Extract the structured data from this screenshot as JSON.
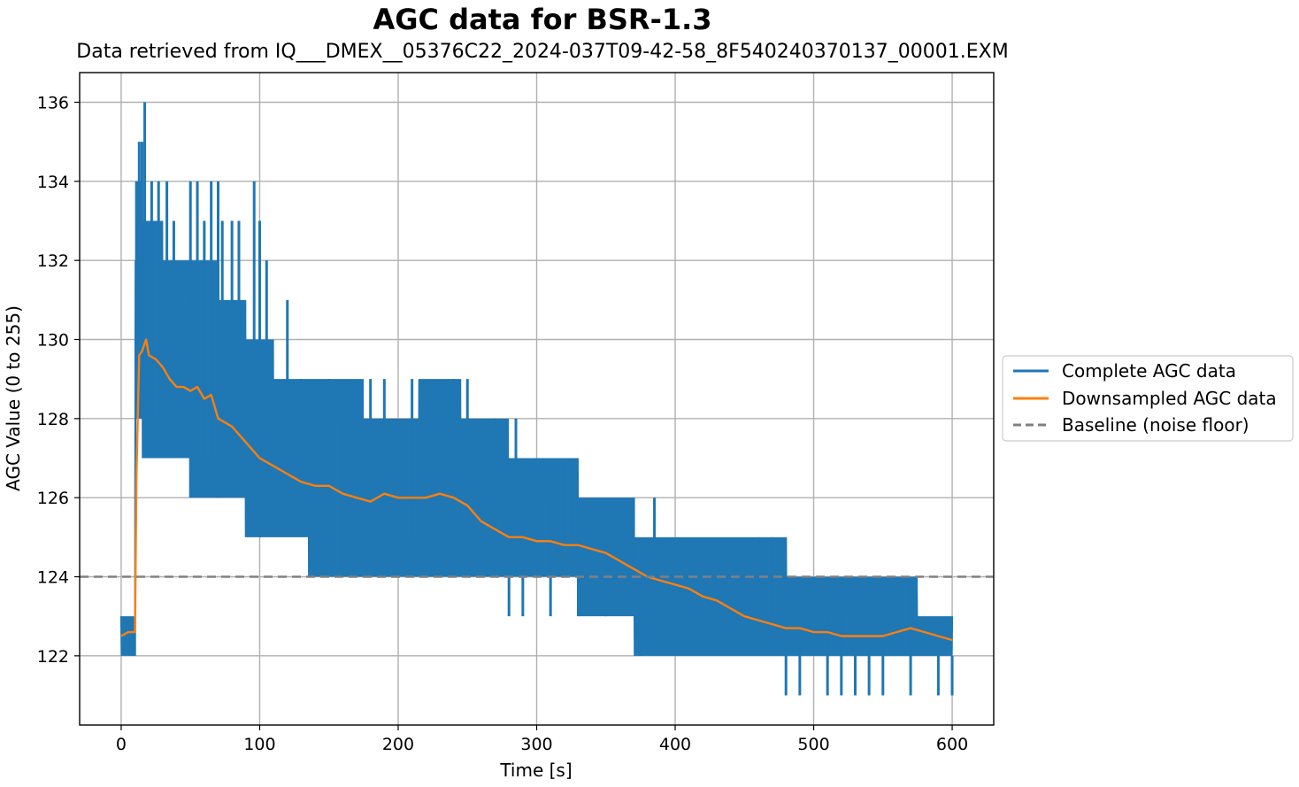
{
  "chart_data": {
    "type": "line",
    "title": "AGC data for BSR-1.3",
    "subtitle": "Data retrieved from IQ___DMEX__05376C22_2024-037T09-42-58_8F540240370137_00001.EXM",
    "xlabel": "Time [s]",
    "ylabel": "AGC Value (0 to 255)",
    "xlim": [
      -30,
      630
    ],
    "ylim": [
      120.25,
      136.75
    ],
    "xticks": [
      0,
      100,
      200,
      300,
      400,
      500,
      600
    ],
    "yticks": [
      122,
      124,
      126,
      128,
      130,
      132,
      134,
      136
    ],
    "grid": true,
    "legend_position": "center-right outside",
    "baseline": {
      "name": "Baseline (noise floor)",
      "value": 124,
      "color": "#808080",
      "style": "dashed"
    },
    "series": [
      {
        "name": "Complete AGC data",
        "color": "#1f77b4",
        "kind": "band",
        "x": [
          0,
          10,
          10.5,
          20,
          40,
          60,
          80,
          100,
          120,
          150,
          200,
          230,
          260,
          300,
          360,
          380,
          440,
          460,
          500,
          550,
          600
        ],
        "low": [
          122,
          122,
          128,
          127,
          127,
          126,
          126,
          125,
          125,
          124,
          124,
          124,
          124,
          124,
          123,
          122,
          122,
          122,
          122,
          122,
          122
        ],
        "high": [
          123,
          123,
          134,
          133,
          132,
          132,
          131,
          130,
          129,
          129,
          128,
          129,
          128,
          127,
          126,
          125,
          125,
          125,
          124,
          124,
          123
        ],
        "spikes_high": [
          [
            11,
            134
          ],
          [
            13,
            135
          ],
          [
            15,
            135
          ],
          [
            17,
            136
          ],
          [
            22,
            134
          ],
          [
            27,
            134
          ],
          [
            33,
            134
          ],
          [
            38,
            133
          ],
          [
            50,
            134
          ],
          [
            55,
            134
          ],
          [
            60,
            133
          ],
          [
            65,
            134
          ],
          [
            70,
            134
          ],
          [
            73,
            133
          ],
          [
            80,
            133
          ],
          [
            85,
            133
          ],
          [
            96,
            134
          ],
          [
            100,
            133
          ],
          [
            105,
            132
          ],
          [
            120,
            131
          ],
          [
            130,
            129
          ],
          [
            150,
            129
          ],
          [
            180,
            129
          ],
          [
            190,
            129
          ],
          [
            210,
            129
          ],
          [
            240,
            129
          ],
          [
            250,
            129
          ],
          [
            270,
            128
          ],
          [
            285,
            128
          ],
          [
            320,
            127
          ],
          [
            325,
            127
          ],
          [
            370,
            126
          ],
          [
            385,
            126
          ],
          [
            460,
            125
          ],
          [
            470,
            125
          ],
          [
            530,
            124
          ],
          [
            570,
            124
          ]
        ],
        "spikes_low": [
          [
            8,
            122
          ],
          [
            30,
            127
          ],
          [
            50,
            126
          ],
          [
            70,
            126
          ],
          [
            100,
            125
          ],
          [
            140,
            124
          ],
          [
            160,
            124
          ],
          [
            225,
            124
          ],
          [
            280,
            123
          ],
          [
            290,
            123
          ],
          [
            310,
            123
          ],
          [
            330,
            123
          ],
          [
            350,
            123
          ],
          [
            375,
            122
          ],
          [
            480,
            121
          ],
          [
            490,
            121
          ],
          [
            510,
            121
          ],
          [
            520,
            121
          ],
          [
            530,
            121
          ],
          [
            540,
            121
          ],
          [
            550,
            121
          ],
          [
            570,
            121
          ],
          [
            590,
            121
          ],
          [
            600,
            121
          ]
        ]
      },
      {
        "name": "Downsampled AGC data",
        "color": "#ff7f0e",
        "kind": "line",
        "x": [
          0,
          5,
          10,
          11,
          13,
          15,
          18,
          20,
          25,
          30,
          35,
          40,
          45,
          50,
          55,
          60,
          65,
          70,
          75,
          80,
          85,
          90,
          95,
          100,
          110,
          120,
          130,
          140,
          150,
          160,
          170,
          180,
          190,
          200,
          210,
          220,
          230,
          240,
          250,
          255,
          260,
          270,
          280,
          290,
          300,
          310,
          320,
          330,
          340,
          350,
          360,
          370,
          380,
          390,
          400,
          410,
          420,
          430,
          440,
          450,
          460,
          470,
          480,
          490,
          500,
          510,
          520,
          530,
          540,
          550,
          560,
          570,
          580,
          590,
          600
        ],
        "y": [
          122.5,
          122.6,
          122.6,
          126.5,
          129.6,
          129.7,
          130.0,
          129.6,
          129.5,
          129.3,
          129.0,
          128.8,
          128.8,
          128.7,
          128.8,
          128.5,
          128.6,
          128.0,
          127.9,
          127.8,
          127.6,
          127.4,
          127.2,
          127.0,
          126.8,
          126.6,
          126.4,
          126.3,
          126.3,
          126.1,
          126.0,
          125.9,
          126.1,
          126.0,
          126.0,
          126.0,
          126.1,
          126.0,
          125.8,
          125.6,
          125.4,
          125.2,
          125.0,
          125.0,
          124.9,
          124.9,
          124.8,
          124.8,
          124.7,
          124.6,
          124.4,
          124.2,
          124.0,
          123.9,
          123.8,
          123.7,
          123.5,
          123.4,
          123.2,
          123.0,
          122.9,
          122.8,
          122.7,
          122.7,
          122.6,
          122.6,
          122.5,
          122.5,
          122.5,
          122.5,
          122.6,
          122.7,
          122.6,
          122.5,
          122.4
        ]
      }
    ]
  }
}
